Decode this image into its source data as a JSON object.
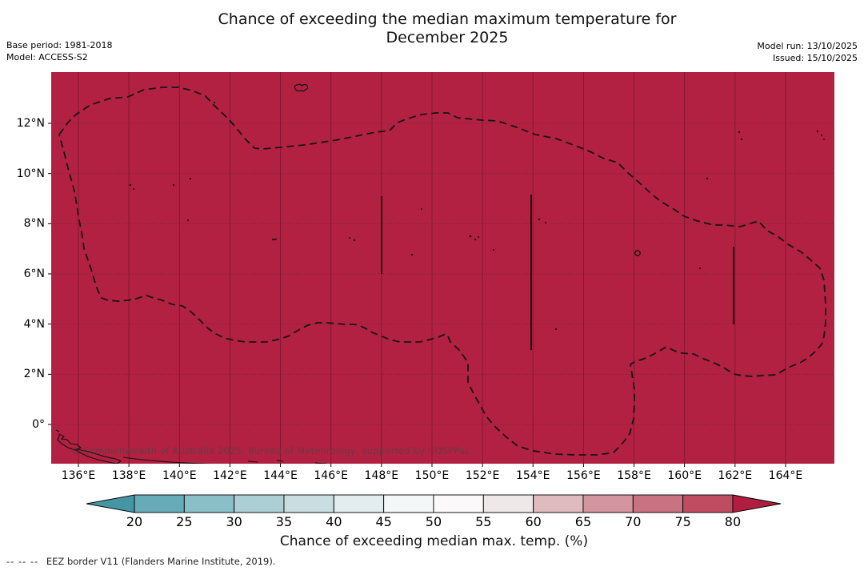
{
  "header": {
    "title_line1": "Chance of exceeding the median maximum temperature for",
    "title_line2": "December 2025",
    "base_period": "Base period: 1981-2018",
    "model": "Model: ACCESS-S2",
    "model_run": "Model run: 13/10/2025",
    "issued": "Issued: 15/10/2025"
  },
  "map": {
    "watermark": "© Commonwealth of Australia 2025, Bureau of Meteorology, supported by COSPPac",
    "fill_color": "#b22142",
    "eez_border_color": "#141414",
    "lat_ticks": [
      "12°N",
      "10°N",
      "8°N",
      "6°N",
      "4°N",
      "2°N",
      "0°"
    ],
    "lon_ticks": [
      "136°E",
      "138°E",
      "140°E",
      "142°E",
      "144°E",
      "146°E",
      "148°E",
      "150°E",
      "152°E",
      "154°E",
      "156°E",
      "158°E",
      "160°E",
      "162°E",
      "164°E"
    ]
  },
  "colorbar": {
    "label": "Chance of exceeding median max. temp. (%)",
    "ticks": [
      "20",
      "25",
      "30",
      "35",
      "40",
      "45",
      "50",
      "55",
      "60",
      "65",
      "70",
      "75",
      "80"
    ],
    "under_color": "#4496a4",
    "over_color": "#b01d3f",
    "segment_colors": [
      "#66abb7",
      "#8abfc7",
      "#accfd5",
      "#cadde0",
      "#e3ecee",
      "#f4f7f7",
      "#fbf9f9",
      "#eee8e8",
      "#dfbabf",
      "#d3959f",
      "#c97281",
      "#bf4c61"
    ]
  },
  "footnote": {
    "symbol": "--  --  --",
    "text": "EEZ border V11 (Flanders Marine Institute, 2019)."
  },
  "chart_data": {
    "type": "heatmap",
    "title": "Chance of exceeding the median maximum temperature for December 2025",
    "colorbar_label": "Chance of exceeding median max. temp. (%)",
    "colorbar_ticks": [
      20,
      25,
      30,
      35,
      40,
      45,
      50,
      55,
      60,
      65,
      70,
      75,
      80
    ],
    "lon_axis_deg_east": [
      136,
      138,
      140,
      142,
      144,
      146,
      148,
      150,
      152,
      154,
      156,
      158,
      160,
      162,
      164
    ],
    "lat_axis_deg_north": [
      0,
      2,
      4,
      6,
      8,
      10,
      12
    ],
    "field_summary": "Entire mapped EEZ region is shaded in the >80% exceedance class (uniform crimson fill)"
  }
}
